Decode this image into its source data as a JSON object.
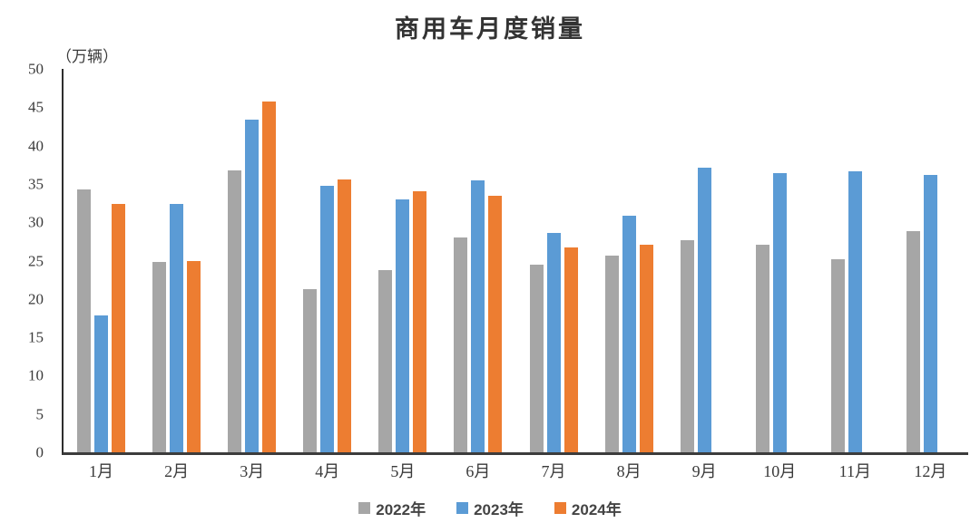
{
  "chart_data": {
    "type": "bar",
    "title": "商用车月度销量",
    "unit_label": "（万辆）",
    "xlabel": "",
    "ylabel": "（万辆）",
    "categories": [
      "1月",
      "2月",
      "3月",
      "4月",
      "5月",
      "6月",
      "7月",
      "8月",
      "9月",
      "10月",
      "11月",
      "12月"
    ],
    "series": [
      {
        "name": "2022年",
        "color": "#A6A6A6",
        "values": [
          34.3,
          24.8,
          36.8,
          21.3,
          23.8,
          28.0,
          24.5,
          25.7,
          27.7,
          27.1,
          25.2,
          28.9
        ]
      },
      {
        "name": "2023年",
        "color": "#5B9BD5",
        "values": [
          17.8,
          32.4,
          43.4,
          34.7,
          33.0,
          35.5,
          28.6,
          30.9,
          37.1,
          36.4,
          36.6,
          36.2
        ]
      },
      {
        "name": "2024年",
        "color": "#ED7D31",
        "values": [
          32.4,
          25.0,
          45.8,
          35.6,
          34.0,
          33.5,
          26.7,
          27.1,
          null,
          null,
          null,
          null
        ]
      }
    ],
    "ylim": [
      0,
      50
    ],
    "y_ticks": [
      0,
      5,
      10,
      15,
      20,
      25,
      30,
      35,
      40,
      45,
      50
    ],
    "grid": false,
    "legend_position": "bottom",
    "colors": {
      "axis": "#3c3c3c",
      "text": "#3a3a3a",
      "background": "#ffffff"
    }
  }
}
